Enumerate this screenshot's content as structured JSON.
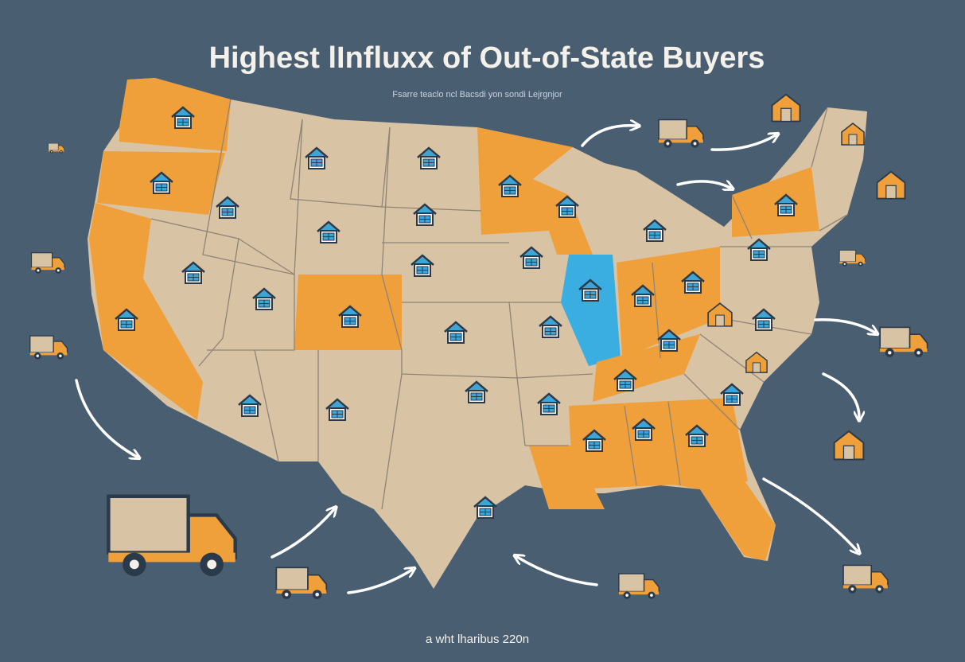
{
  "header": {
    "title": "Highest lInfluxx of Out-of-State Buyers",
    "subtitle": "Fsarre teaclo ncl Bacsdi yon sondi Lejrgnjor"
  },
  "footer": {
    "credit": "a wht lharibus 220n"
  }
}
